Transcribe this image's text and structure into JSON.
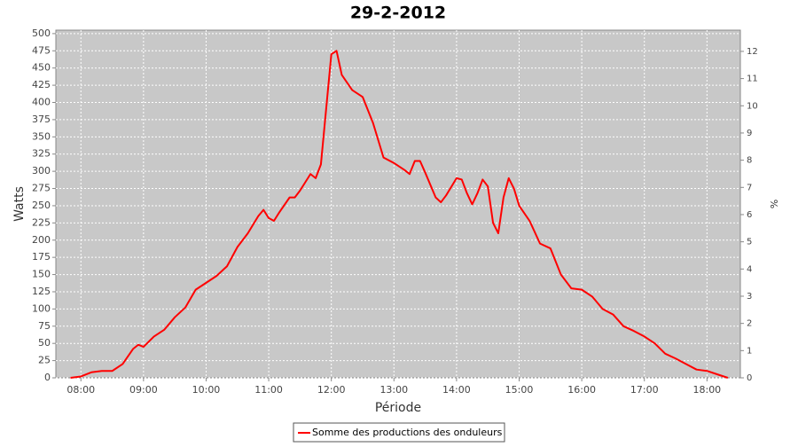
{
  "chart_data": {
    "type": "line",
    "title": "29-2-2012",
    "x_label": "Période",
    "y_label": "Watts",
    "y2_label": "%",
    "x": [
      "07:50",
      "08:00",
      "08:10",
      "08:20",
      "08:30",
      "08:40",
      "08:50",
      "08:55",
      "09:00",
      "09:10",
      "09:20",
      "09:30",
      "09:40",
      "09:50",
      "10:00",
      "10:10",
      "10:20",
      "10:30",
      "10:40",
      "10:50",
      "10:55",
      "11:00",
      "11:05",
      "11:10",
      "11:20",
      "11:25",
      "11:30",
      "11:40",
      "11:45",
      "11:50",
      "11:55",
      "12:00",
      "12:05",
      "12:10",
      "12:20",
      "12:30",
      "12:40",
      "12:50",
      "13:00",
      "13:10",
      "13:15",
      "13:20",
      "13:25",
      "13:30",
      "13:40",
      "13:45",
      "13:50",
      "14:00",
      "14:05",
      "14:10",
      "14:15",
      "14:20",
      "14:25",
      "14:30",
      "14:35",
      "14:40",
      "14:45",
      "14:50",
      "14:55",
      "15:00",
      "15:10",
      "15:20",
      "15:30",
      "15:40",
      "15:50",
      "16:00",
      "16:10",
      "16:20",
      "16:30",
      "16:40",
      "16:50",
      "17:00",
      "17:10",
      "17:20",
      "17:30",
      "17:40",
      "17:50",
      "18:00",
      "18:10",
      "18:20"
    ],
    "series": [
      {
        "name": "Somme des productions des onduleurs",
        "color": "#ff0000",
        "values": [
          0,
          2,
          8,
          10,
          10,
          20,
          42,
          48,
          45,
          60,
          70,
          88,
          102,
          128,
          138,
          148,
          162,
          190,
          210,
          235,
          244,
          232,
          228,
          240,
          262,
          262,
          272,
          296,
          290,
          310,
          390,
          470,
          475,
          440,
          418,
          408,
          370,
          320,
          312,
          302,
          296,
          315,
          315,
          298,
          262,
          255,
          265,
          290,
          288,
          268,
          252,
          268,
          288,
          278,
          225,
          210,
          262,
          290,
          275,
          250,
          228,
          195,
          188,
          150,
          130,
          128,
          118,
          100,
          92,
          75,
          68,
          60,
          50,
          35,
          28,
          20,
          12,
          10,
          5,
          0
        ]
      }
    ],
    "xlim": [
      "07:36",
      "18:32"
    ],
    "xticks": [
      "08:00",
      "09:00",
      "10:00",
      "11:00",
      "12:00",
      "13:00",
      "14:00",
      "15:00",
      "16:00",
      "17:00",
      "18:00"
    ],
    "ylim": [
      0,
      505
    ],
    "yticks": [
      0,
      25,
      50,
      75,
      100,
      125,
      150,
      175,
      200,
      225,
      250,
      275,
      300,
      325,
      350,
      375,
      400,
      425,
      450,
      475,
      500
    ],
    "y2lim": [
      0,
      12.78
    ],
    "y2ticks": [
      0,
      1,
      2,
      3,
      4,
      5,
      6,
      7,
      8,
      9,
      10,
      11,
      12
    ],
    "grid": true,
    "legend": "bottom"
  }
}
